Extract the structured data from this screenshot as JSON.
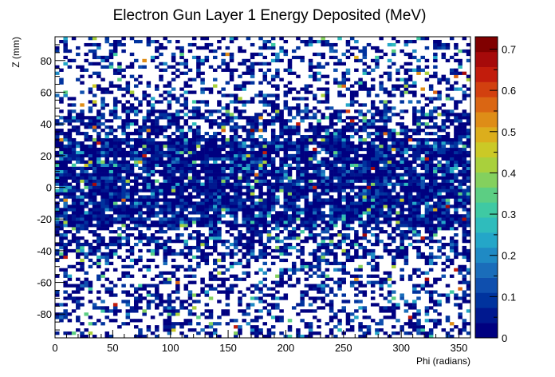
{
  "chart_data": {
    "type": "heatmap",
    "title": "Electron Gun Layer 1 Energy Deposited (MeV)",
    "xlabel": "Phi (radians)",
    "ylabel": "Z (mm)",
    "xlim": [
      0,
      360
    ],
    "ylim": [
      -95,
      95
    ],
    "x_ticks": [
      0,
      50,
      100,
      150,
      200,
      250,
      300,
      350
    ],
    "y_ticks": [
      -80,
      -60,
      -40,
      -20,
      0,
      20,
      40,
      60,
      80
    ],
    "x_bins": 100,
    "y_bins": 95,
    "color_scale": {
      "min": 0,
      "max": 0.73,
      "ticks": [
        0,
        0.1,
        0.2,
        0.3,
        0.4,
        0.5,
        0.6,
        0.7
      ],
      "palette": [
        "#000080",
        "#00188f",
        "#00339e",
        "#0f4fae",
        "#1a6dba",
        "#1f8ac4",
        "#24a6c8",
        "#2fbcbc",
        "#3fc9a3",
        "#5cce83",
        "#84d05e",
        "#a9d03c",
        "#cbc926",
        "#dcae1c",
        "#de8d17",
        "#da6613",
        "#d2400f",
        "#c21c0c",
        "#a60a0a",
        "#800000"
      ]
    },
    "distribution": {
      "core_z_range": [
        -25,
        30
      ],
      "core_fill_fraction": 0.88,
      "outer_fill_fraction": 0.35,
      "typical_core_value": 0.05,
      "peak_value": 0.7
    }
  }
}
